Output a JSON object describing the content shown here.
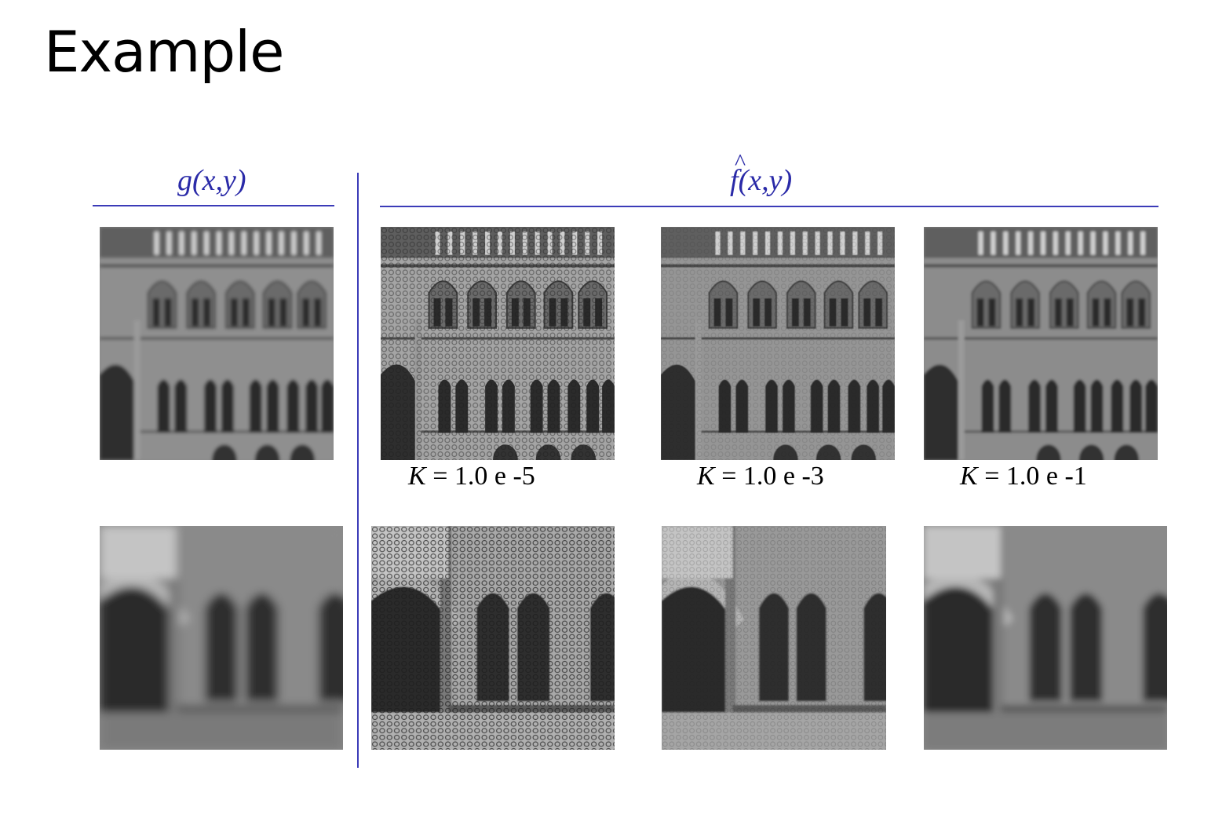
{
  "slide": {
    "title": "Example"
  },
  "headers": {
    "left": "g(x,y)",
    "right_fn": "f",
    "right_args": "(x,y)"
  },
  "captions": [
    {
      "symbol": "K",
      "text": " = 1.0 e -5"
    },
    {
      "symbol": "K",
      "text": " = 1.0 e -3"
    },
    {
      "symbol": "K",
      "text": " = 1.0 e -1"
    }
  ],
  "colors": {
    "accent": "#3b3bb8",
    "header_text": "#2a2aa8"
  }
}
